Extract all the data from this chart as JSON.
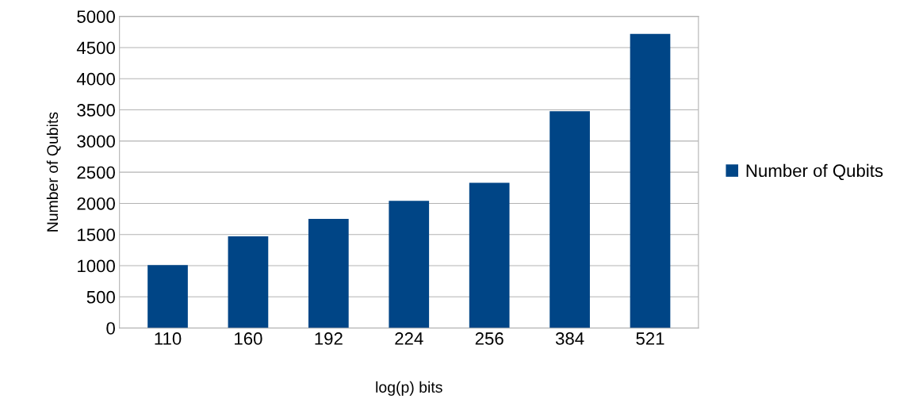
{
  "chart_data": {
    "type": "bar",
    "xlabel": "log(p) bits",
    "ylabel": "Number of Qubits",
    "categories": [
      "110",
      "160",
      "192",
      "224",
      "256",
      "384",
      "521"
    ],
    "series": [
      {
        "name": "Number of Qubits",
        "color": "#004586",
        "values": [
          1010,
          1470,
          1750,
          2040,
          2330,
          3480,
          4720
        ]
      }
    ],
    "ylim": [
      0,
      5000
    ],
    "yticks": [
      0,
      500,
      1000,
      1500,
      2000,
      2500,
      3000,
      3500,
      4000,
      4500,
      5000
    ],
    "grid": "y",
    "legend": "right"
  }
}
